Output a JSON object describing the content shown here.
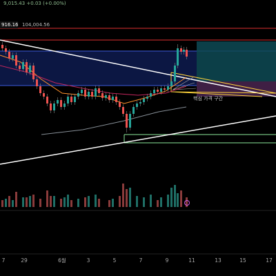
{
  "header": {
    "quote": "9,015.43 +0.03 (+0.00%)",
    "price_a": "916.16",
    "price_b": "104,004.56"
  },
  "annotations": {
    "zone_label": "핵심 가격 구간"
  },
  "x_axis": {
    "labels": [
      "7",
      "29",
      "6월",
      "3",
      "5",
      "7",
      "9",
      "11",
      "13",
      "15",
      "17"
    ]
  }
}
